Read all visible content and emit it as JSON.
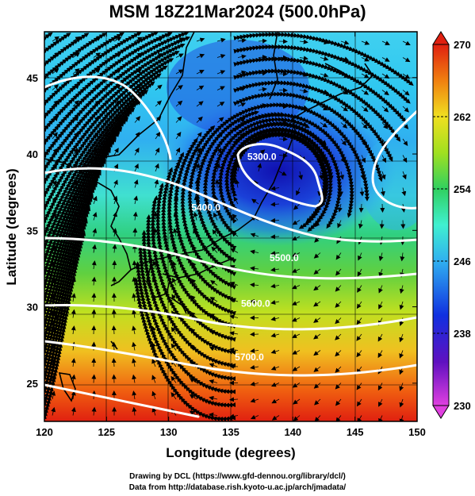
{
  "title": "MSM 18Z21Mar2024 (500.0hPa)",
  "axes": {
    "xlabel": "Longitude (degrees)",
    "ylabel": "Latitude  (degrees)",
    "xticks": [
      "120",
      "125",
      "130",
      "135",
      "140",
      "145",
      "150"
    ],
    "yticks": [
      "25",
      "30",
      "35",
      "40",
      "45"
    ],
    "xlim": [
      120,
      150
    ],
    "ylim": [
      22.5,
      48
    ]
  },
  "colorbar": {
    "ticks": [
      "270",
      "262",
      "254",
      "246",
      "238",
      "230"
    ],
    "range": [
      230,
      270
    ],
    "colors": [
      "#e040e0",
      "#6010c0",
      "#1030e0",
      "#30b0f0",
      "#40f0d0",
      "#30d060",
      "#a0e020",
      "#f0e020",
      "#f08010",
      "#e02010"
    ]
  },
  "contours": [
    {
      "label": "5300.0",
      "lat": 39.6,
      "lon": 137.5
    },
    {
      "label": "5400.0",
      "lat": 36.3,
      "lon": 133.0
    },
    {
      "label": "5500.0",
      "lat": 33.0,
      "lon": 139.3
    },
    {
      "label": "5600.0",
      "lat": 30.0,
      "lon": 137.0
    },
    {
      "label": "5700.0",
      "lat": 26.5,
      "lon": 136.5
    }
  ],
  "credits": {
    "line1": "Drawing by DCL (https://www.gfd-dennou.org/library/dcl/)",
    "line2": "Data from http://database.rish.kyoto-u.ac.jp/arch/jmadata/"
  }
}
